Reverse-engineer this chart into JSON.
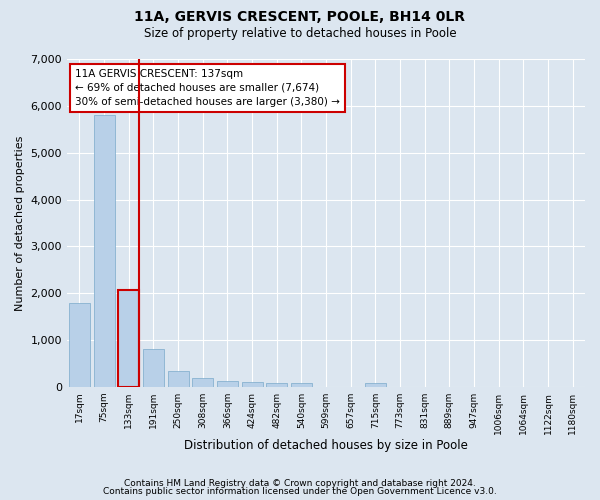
{
  "title": "11A, GERVIS CRESCENT, POOLE, BH14 0LR",
  "subtitle": "Size of property relative to detached houses in Poole",
  "xlabel": "Distribution of detached houses by size in Poole",
  "ylabel": "Number of detached properties",
  "bar_color": "#b8d0e8",
  "bar_edge_color": "#7aaacb",
  "highlight_bar_index": 2,
  "highlight_color": "#cc0000",
  "annotation_title": "11A GERVIS CRESCENT: 137sqm",
  "annotation_line1": "← 69% of detached houses are smaller (7,674)",
  "annotation_line2": "30% of semi-detached houses are larger (3,380) →",
  "annotation_box_color": "#cc0000",
  "categories": [
    "17sqm",
    "75sqm",
    "133sqm",
    "191sqm",
    "250sqm",
    "308sqm",
    "366sqm",
    "424sqm",
    "482sqm",
    "540sqm",
    "599sqm",
    "657sqm",
    "715sqm",
    "773sqm",
    "831sqm",
    "889sqm",
    "947sqm",
    "1006sqm",
    "1064sqm",
    "1122sqm",
    "1180sqm"
  ],
  "values": [
    1800,
    5800,
    2060,
    800,
    340,
    195,
    120,
    110,
    95,
    75,
    0,
    0,
    95,
    0,
    0,
    0,
    0,
    0,
    0,
    0,
    0
  ],
  "ylim": [
    0,
    7000
  ],
  "yticks": [
    0,
    1000,
    2000,
    3000,
    4000,
    5000,
    6000,
    7000
  ],
  "footnote1": "Contains HM Land Registry data © Crown copyright and database right 2024.",
  "footnote2": "Contains public sector information licensed under the Open Government Licence v3.0.",
  "background_color": "#dce6f0",
  "plot_bg_color": "#dce6f0"
}
